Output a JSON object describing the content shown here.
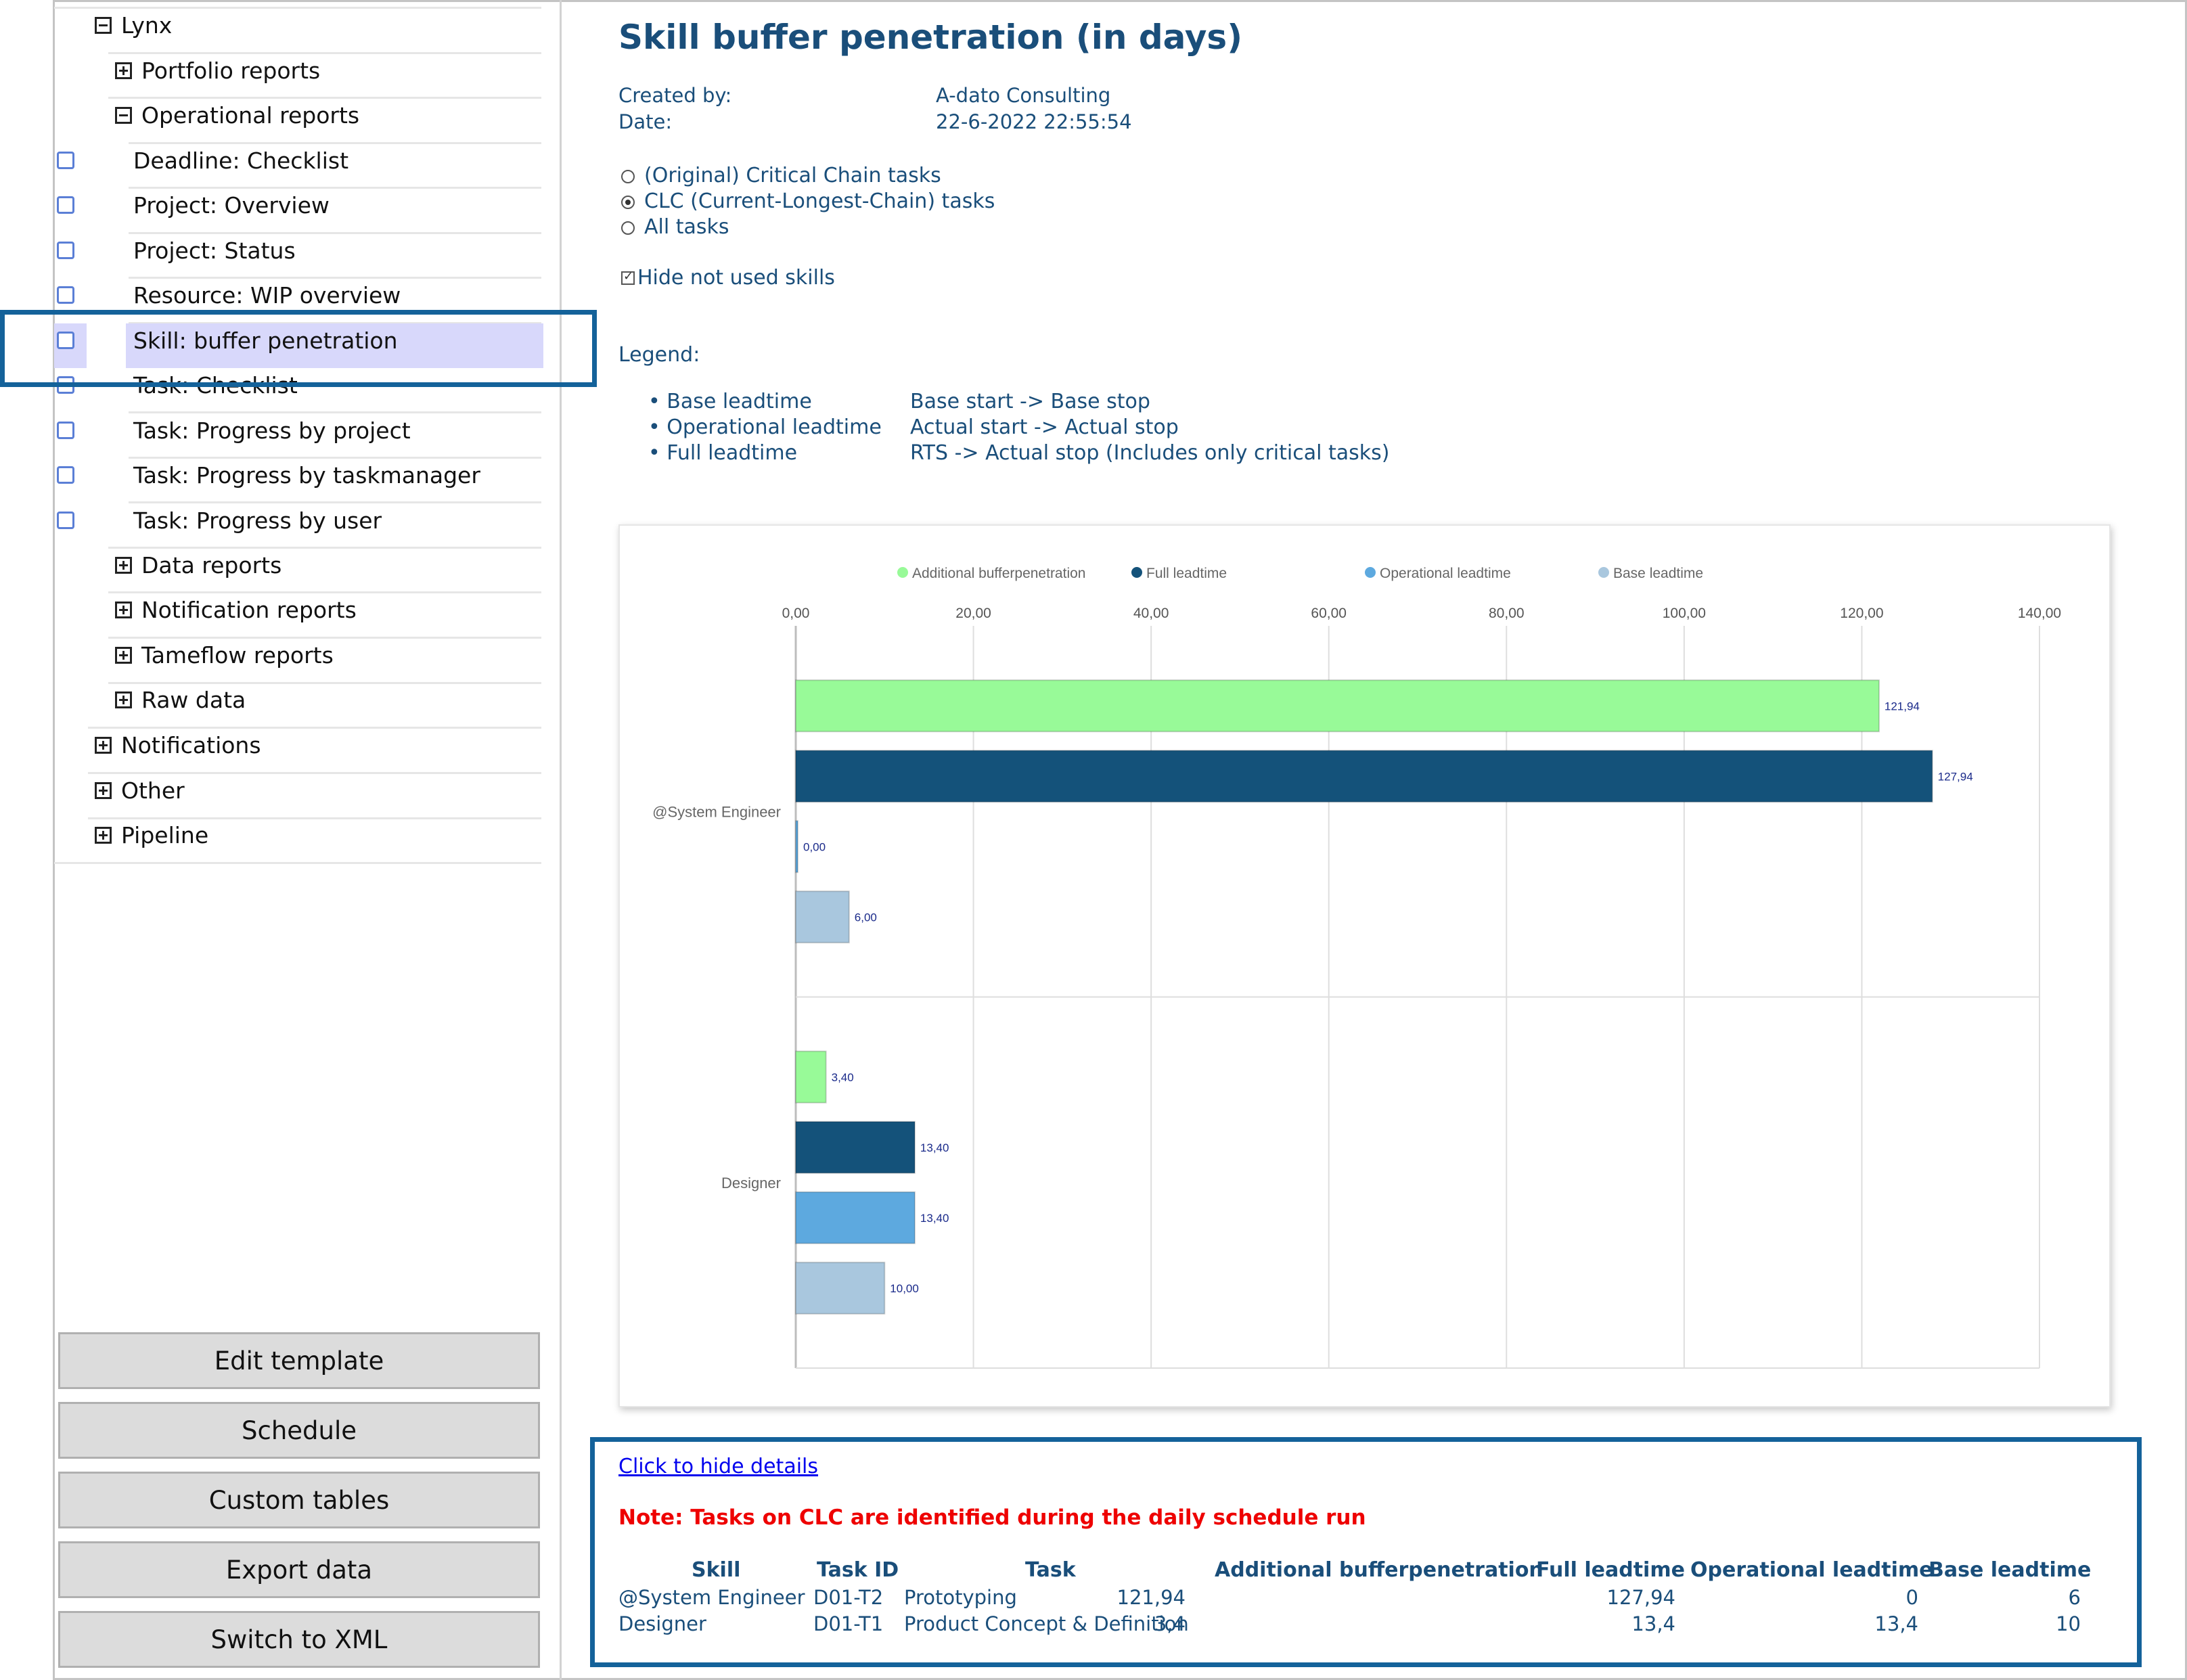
{
  "tree": {
    "root": "Lynx",
    "portfolio": "Portfolio reports",
    "operational": "Operational reports",
    "reports": [
      "Deadline: Checklist",
      "Project: Overview",
      "Project: Status",
      "Resource: WIP overview",
      "Skill: buffer penetration",
      "Task: Checklist",
      "Task: Progress by project",
      "Task: Progress by taskmanager",
      "Task: Progress by user"
    ],
    "data": "Data reports",
    "notification_reports": "Notification reports",
    "tameflow": "Tameflow reports",
    "raw": "Raw data",
    "notifications": "Notifications",
    "other": "Other",
    "pipeline": "Pipeline"
  },
  "buttons": {
    "edit": "Edit template",
    "schedule": "Schedule",
    "custom": "Custom tables",
    "export": "Export data",
    "xml": "Switch to XML"
  },
  "report": {
    "title": "Skill buffer penetration (in days)",
    "created_by_label": "Created by:",
    "created_by": "A-dato Consulting",
    "date_label": "Date:",
    "date": "22-6-2022 22:55:54",
    "options": [
      "(Original) Critical Chain tasks",
      "CLC (Current-Longest-Chain) tasks",
      "All tasks"
    ],
    "selected_option": 1,
    "hide_skills": "Hide not used skills",
    "legend_title": "Legend:",
    "legend": [
      {
        "name": "Base leadtime",
        "desc": "Base start -> Base stop"
      },
      {
        "name": "Operational leadtime",
        "desc": "Actual start -> Actual stop"
      },
      {
        "name": "Full leadtime",
        "desc": "RTS -> Actual stop (Includes only critical tasks)"
      }
    ]
  },
  "chart_data": {
    "type": "bar",
    "orientation": "horizontal",
    "categories": [
      "@System Engineer",
      "Designer"
    ],
    "series": [
      {
        "name": "Additional  bufferpenetration",
        "color": "#98fa98",
        "values": [
          121.94,
          3.4
        ]
      },
      {
        "name": "Full  leadtime",
        "color": "#14527a",
        "values": [
          127.94,
          13.4
        ]
      },
      {
        "name": "Operational  leadtime",
        "color": "#5da9df",
        "values": [
          0.0,
          13.4
        ]
      },
      {
        "name": "Base  leadtime",
        "color": "#a9c7de",
        "values": [
          6.0,
          10.0
        ]
      }
    ],
    "value_labels": [
      [
        "121,94",
        "127,94",
        "0,00",
        "6,00"
      ],
      [
        "3,40",
        "13,40",
        "13,40",
        "10,00"
      ]
    ],
    "xlim": [
      0,
      140
    ],
    "xticks": [
      "0,00",
      "20,00",
      "40,00",
      "60,00",
      "80,00",
      "100,00",
      "120,00",
      "140,00"
    ],
    "legend_position": "top",
    "grid": true
  },
  "details": {
    "link": "Click to hide details",
    "note": "Note: Tasks on CLC are identified during the daily schedule run",
    "headers": [
      "Skill",
      "Task ID",
      "Task",
      "Additional bufferpenetration",
      "Full leadtime",
      "Operational leadtime",
      "Base leadtime"
    ],
    "rows": [
      [
        "@System Engineer",
        "D01-T2",
        "Prototyping",
        "121,94",
        "127,94",
        "0",
        "6"
      ],
      [
        "Designer",
        "D01-T1",
        "Product Concept & Definition",
        "3,4",
        "13,4",
        "13,4",
        "10"
      ]
    ]
  }
}
